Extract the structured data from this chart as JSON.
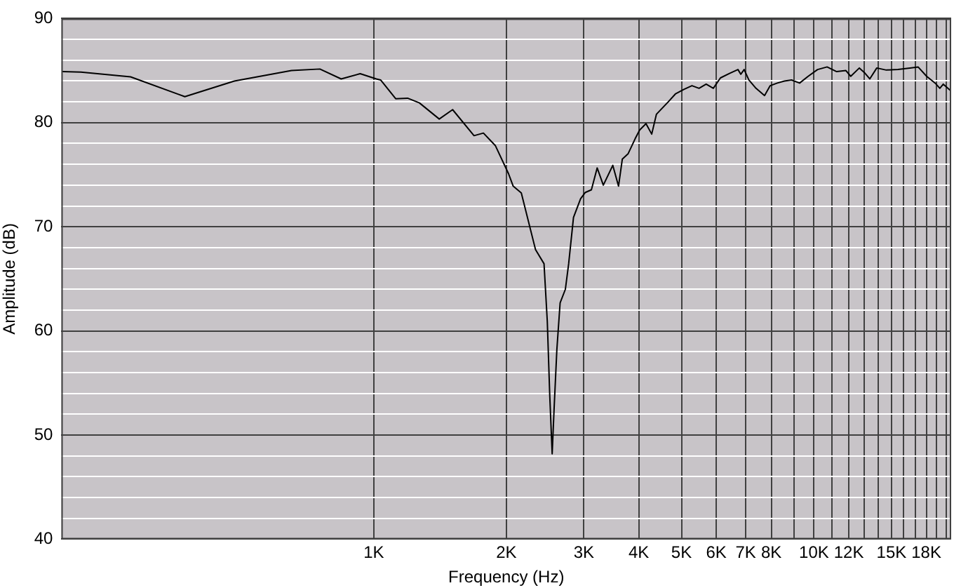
{
  "chart_data": {
    "type": "line",
    "xlabel": "Frequency (Hz)",
    "ylabel": "Amplitude (dB)",
    "log": "x",
    "grid": true,
    "legend": false,
    "marker": "none",
    "line_style": "solid",
    "xlim": [
      195,
      20500
    ],
    "ylim": [
      40,
      90
    ],
    "xticks": [
      {
        "value": 1000,
        "label": "1K"
      },
      {
        "value": 2000,
        "label": "2K"
      },
      {
        "value": 3000,
        "label": "3K"
      },
      {
        "value": 4000,
        "label": "4K"
      },
      {
        "value": 5000,
        "label": "5K"
      },
      {
        "value": 6000,
        "label": "6K"
      },
      {
        "value": 7000,
        "label": "7K"
      },
      {
        "value": 8000,
        "label": "8K"
      },
      {
        "value": 9000,
        "label": null
      },
      {
        "value": 10000,
        "label": "10K"
      },
      {
        "value": 11000,
        "label": null
      },
      {
        "value": 12000,
        "label": "12K"
      },
      {
        "value": 13000,
        "label": null
      },
      {
        "value": 14000,
        "label": null
      },
      {
        "value": 15000,
        "label": "15K"
      },
      {
        "value": 16000,
        "label": null
      },
      {
        "value": 17000,
        "label": null
      },
      {
        "value": 18000,
        "label": "18K"
      },
      {
        "value": 19000,
        "label": null
      },
      {
        "value": 20000,
        "label": null
      }
    ],
    "yticks": [
      40,
      {
        "value": 42,
        "label": null
      },
      {
        "value": 44,
        "label": null
      },
      {
        "value": 46,
        "label": null
      },
      {
        "value": 48,
        "label": null
      },
      50,
      {
        "value": 52,
        "label": null
      },
      {
        "value": 54,
        "label": null
      },
      {
        "value": 56,
        "label": null
      },
      {
        "value": 58,
        "label": null
      },
      60,
      {
        "value": 62,
        "label": null
      },
      {
        "value": 64,
        "label": null
      },
      {
        "value": 66,
        "label": null
      },
      {
        "value": 68,
        "label": null
      },
      70,
      {
        "value": 72,
        "label": null
      },
      {
        "value": 74,
        "label": null
      },
      {
        "value": 76,
        "label": null
      },
      {
        "value": 78,
        "label": null
      },
      80,
      {
        "value": 82,
        "label": null
      },
      {
        "value": 84,
        "label": null
      },
      {
        "value": 86,
        "label": null
      },
      {
        "value": 88,
        "label": null
      },
      90
    ],
    "x": [
      196,
      216,
      280,
      372,
      482,
      650,
      754,
      843,
      931,
      1013,
      1036,
      1121,
      1193,
      1269,
      1408,
      1510,
      1689,
      1774,
      1888,
      2023,
      2073,
      2163,
      2330,
      2436,
      2478,
      2510,
      2542,
      2567,
      2605,
      2650,
      2724,
      2771,
      2842,
      2950,
      3024,
      3121,
      3217,
      3322,
      3491,
      3597,
      3669,
      3780,
      3923,
      4018,
      4153,
      4279,
      4385,
      4666,
      4842,
      5064,
      5282,
      5481,
      5689,
      5906,
      6131,
      6441,
      6719,
      6818,
      6940,
      7112,
      7383,
      7722,
      7953,
      8253,
      8566,
      8893,
      9277,
      9700,
      10190,
      10710,
      11260,
      11820,
      12120,
      12680,
      13060,
      13390,
      13890,
      14600,
      15520,
      16520,
      17240,
      18030,
      18850,
      19320,
      19670,
      20400
    ],
    "series": [
      {
        "color": "#000000",
        "values": [
          84.9,
          84.85,
          84.4,
          82.5,
          84,
          85,
          85.15,
          84.2,
          84.7,
          84.2,
          84.1,
          82.3,
          82.35,
          81.9,
          80.35,
          81.25,
          78.75,
          79,
          77.8,
          75.1,
          73.9,
          73.25,
          67.8,
          66.45,
          60.9,
          53.8,
          48.2,
          52.4,
          58.2,
          62.7,
          64,
          66.45,
          70.9,
          72.7,
          73.3,
          73.55,
          75.65,
          74,
          75.9,
          73.9,
          76.5,
          77,
          78.45,
          79.3,
          79.9,
          78.9,
          80.8,
          82,
          82.75,
          83.2,
          83.55,
          83.3,
          83.7,
          83.3,
          84.3,
          84.75,
          85.1,
          84.65,
          85.1,
          84.1,
          83.3,
          82.6,
          83.55,
          83.8,
          84,
          84.1,
          83.8,
          84.45,
          85.1,
          85.35,
          84.9,
          85,
          84.45,
          85.25,
          84.75,
          84.2,
          85.25,
          85.05,
          85.1,
          85.25,
          85.35,
          84.45,
          83.8,
          83.3,
          83.7,
          83.1
        ]
      }
    ]
  }
}
